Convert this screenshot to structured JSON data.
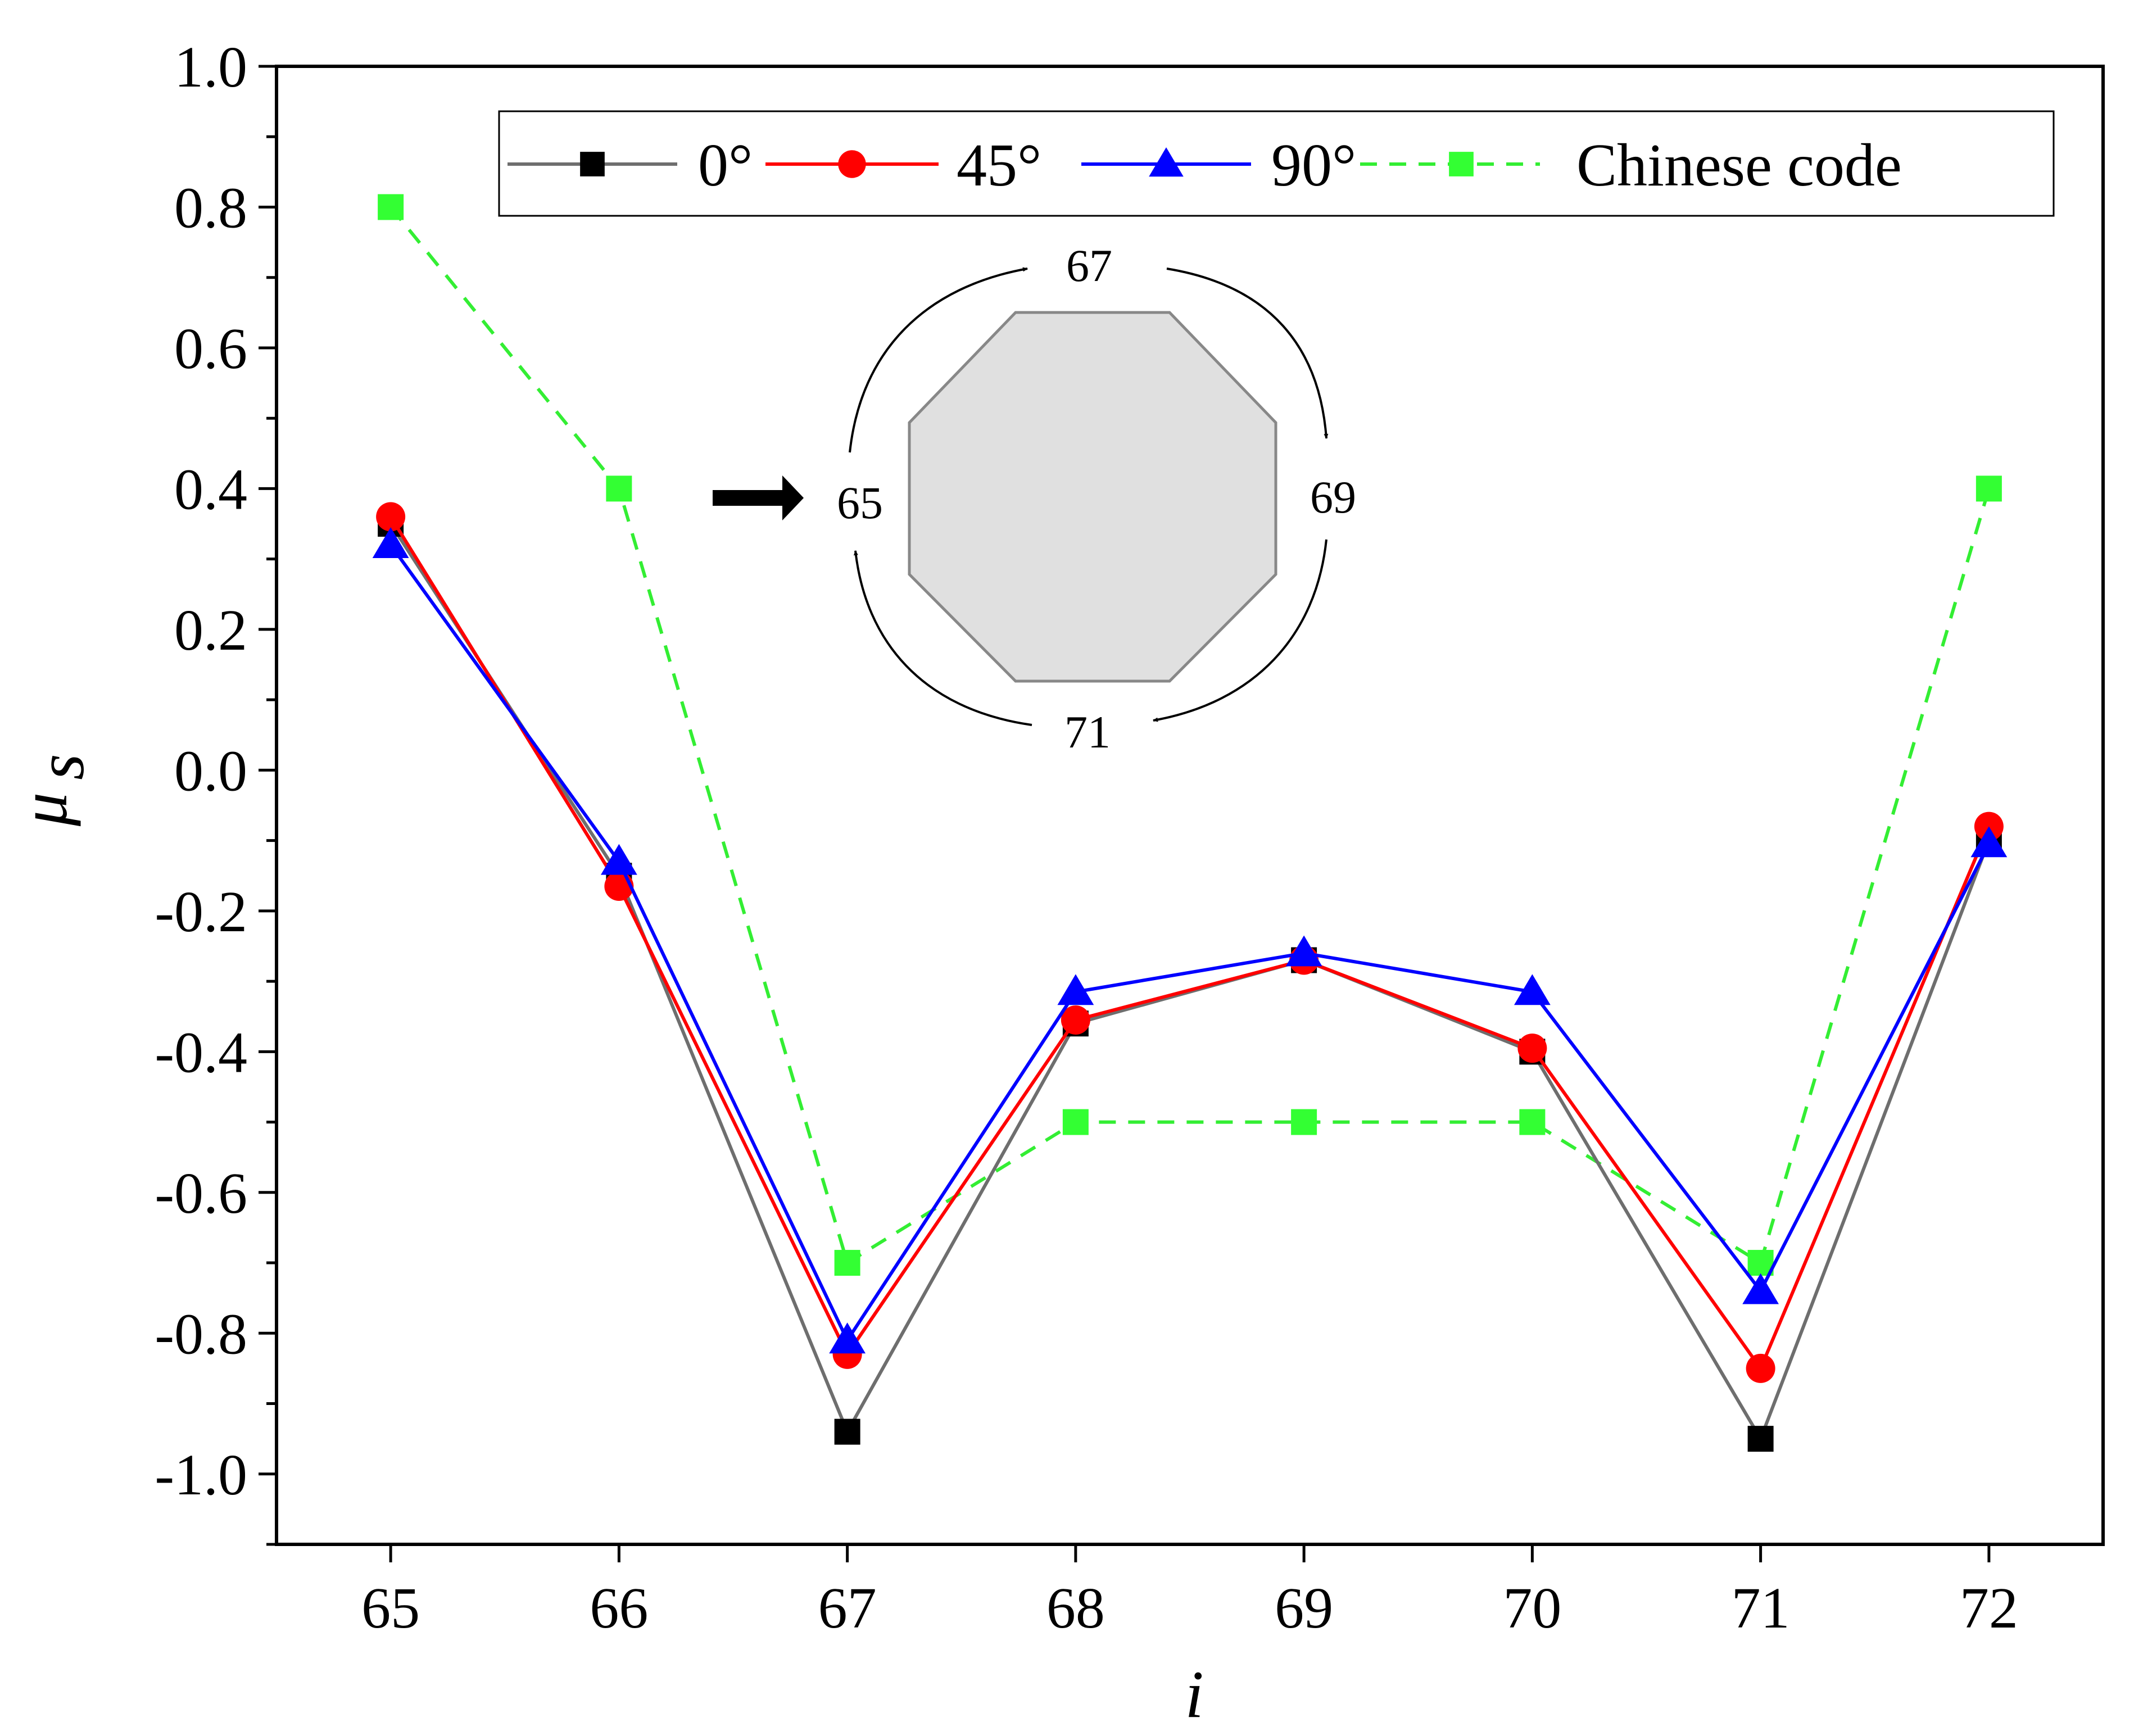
{
  "chart_data": {
    "type": "line",
    "title": "",
    "xlabel": "i",
    "ylabel": "μ",
    "ylabel_subscript": "s",
    "x": [
      65,
      66,
      67,
      68,
      69,
      70,
      71,
      72
    ],
    "xlim": [
      64.5,
      72.5
    ],
    "ylim": [
      -1.1,
      1.0
    ],
    "x_ticks": [
      "65",
      "66",
      "67",
      "68",
      "69",
      "70",
      "71",
      "72"
    ],
    "y_ticks": [
      "1.0",
      "0.8",
      "0.6",
      "0.4",
      "0.2",
      "0.0",
      "-0.2",
      "-0.4",
      "-0.6",
      "-0.8",
      "-1.0"
    ],
    "y_tick_values": [
      1.0,
      0.8,
      0.6,
      0.4,
      0.2,
      0.0,
      -0.2,
      -0.4,
      -0.6,
      -0.8,
      -1.0
    ],
    "grid": false,
    "legend_position": "top-right",
    "series": [
      {
        "name": "0°",
        "color": "#6e6e6e",
        "marker_color": "#000000",
        "marker": "square",
        "dash": "solid",
        "values": [
          0.35,
          -0.15,
          -0.94,
          -0.36,
          -0.27,
          -0.4,
          -0.95,
          -0.1
        ]
      },
      {
        "name": "45°",
        "color": "#ff0000",
        "marker_color": "#ff0000",
        "marker": "circle",
        "dash": "solid",
        "values": [
          0.36,
          -0.165,
          -0.83,
          -0.355,
          -0.27,
          -0.395,
          -0.85,
          -0.08
        ]
      },
      {
        "name": "90°",
        "color": "#0000ff",
        "marker_color": "#0000ff",
        "marker": "triangle",
        "dash": "solid",
        "values": [
          0.32,
          -0.13,
          -0.81,
          -0.315,
          -0.26,
          -0.315,
          -0.74,
          -0.105
        ]
      },
      {
        "name": "Chinese code",
        "color": "#33ee33",
        "marker_color": "#33ff33",
        "marker": "square",
        "dash": "dashed",
        "values": [
          0.8,
          0.4,
          -0.7,
          -0.5,
          -0.5,
          -0.5,
          -0.7,
          0.4
        ]
      }
    ],
    "inset": {
      "description_labels": [
        "67",
        "69",
        "71",
        "65"
      ],
      "shape_fill": "#e0e0e0",
      "shape_stroke": "#888888"
    }
  }
}
